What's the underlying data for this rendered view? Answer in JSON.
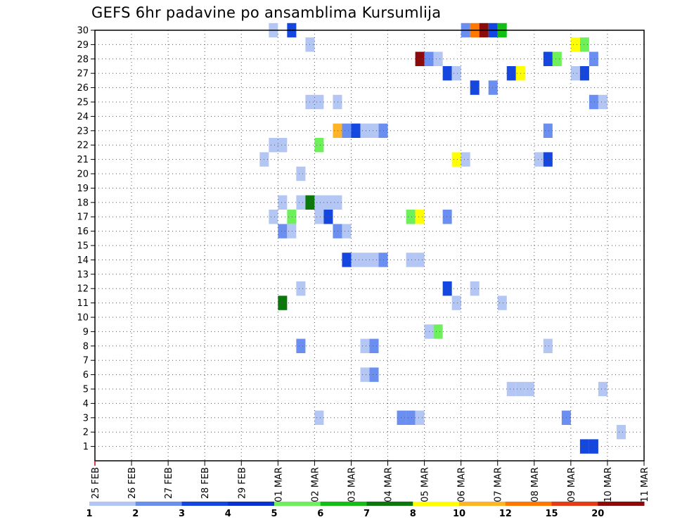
{
  "chart_data": {
    "type": "heatmap",
    "title": "GEFS 6hr padavine po ansamblima Kursumlija",
    "xlabel": "",
    "ylabel": "",
    "x_ticks": [
      "25 FEB",
      "26 FEB",
      "27 FEB",
      "28 FEB",
      "29 FEB",
      "01 MAR",
      "02 MAR",
      "03 MAR",
      "04 MAR",
      "05 MAR",
      "06 MAR",
      "07 MAR",
      "08 MAR",
      "09 MAR",
      "10 MAR",
      "11 MAR"
    ],
    "y_ticks": [
      "1",
      "2",
      "3",
      "4",
      "5",
      "6",
      "7",
      "8",
      "9",
      "10",
      "11",
      "12",
      "13",
      "14",
      "15",
      "16",
      "17",
      "18",
      "19",
      "20",
      "21",
      "22",
      "23",
      "24",
      "25",
      "26",
      "27",
      "28",
      "29",
      "30"
    ],
    "xlim": [
      0,
      60
    ],
    "ylim": [
      0,
      30
    ],
    "x_unit": "6-hour steps from 25 FEB 00Z",
    "grid": true,
    "legend": {
      "placement": "bottom",
      "labels": [
        "1",
        "2",
        "3",
        "4",
        "5",
        "6",
        "7",
        "8",
        "10",
        "12",
        "15",
        "20"
      ],
      "colors": [
        "#b4c6f4",
        "#6b8ff0",
        "#1446e0",
        "#0a32d2",
        "#6ef05a",
        "#14be14",
        "#0a780a",
        "#ffff00",
        "#ffb428",
        "#ff7800",
        "#e63c14",
        "#8c0a0a"
      ]
    },
    "points": [
      {
        "t": 19.5,
        "m": 30,
        "c": 1
      },
      {
        "t": 21.5,
        "m": 30,
        "c": 3
      },
      {
        "t": 40.5,
        "m": 30,
        "c": 2
      },
      {
        "t": 41.5,
        "m": 30,
        "c": 10
      },
      {
        "t": 42.5,
        "m": 30,
        "c": 12
      },
      {
        "t": 43.5,
        "m": 30,
        "c": 3
      },
      {
        "t": 44.5,
        "m": 30,
        "c": 6
      },
      {
        "t": 23.5,
        "m": 29,
        "c": 1
      },
      {
        "t": 52.5,
        "m": 29,
        "c": 8
      },
      {
        "t": 53.5,
        "m": 29,
        "c": 5
      },
      {
        "t": 35.5,
        "m": 28,
        "c": 12
      },
      {
        "t": 36.5,
        "m": 28,
        "c": 2
      },
      {
        "t": 37.5,
        "m": 28,
        "c": 1
      },
      {
        "t": 49.5,
        "m": 28,
        "c": 3
      },
      {
        "t": 50.5,
        "m": 28,
        "c": 5
      },
      {
        "t": 54.5,
        "m": 28,
        "c": 2
      },
      {
        "t": 38.5,
        "m": 27,
        "c": 3
      },
      {
        "t": 39.5,
        "m": 27,
        "c": 1
      },
      {
        "t": 45.5,
        "m": 27,
        "c": 3
      },
      {
        "t": 46.5,
        "m": 27,
        "c": 8
      },
      {
        "t": 52.5,
        "m": 27,
        "c": 1
      },
      {
        "t": 53.5,
        "m": 27,
        "c": 3
      },
      {
        "t": 41.5,
        "m": 26,
        "c": 3
      },
      {
        "t": 43.5,
        "m": 26,
        "c": 2
      },
      {
        "t": 23.5,
        "m": 25,
        "c": 1
      },
      {
        "t": 24.5,
        "m": 25,
        "c": 1
      },
      {
        "t": 26.5,
        "m": 25,
        "c": 1
      },
      {
        "t": 54.5,
        "m": 25,
        "c": 2
      },
      {
        "t": 55.5,
        "m": 25,
        "c": 1
      },
      {
        "t": 26.5,
        "m": 23,
        "c": 9
      },
      {
        "t": 27.5,
        "m": 23,
        "c": 2
      },
      {
        "t": 28.5,
        "m": 23,
        "c": 3
      },
      {
        "t": 29.5,
        "m": 23,
        "c": 1
      },
      {
        "t": 30.5,
        "m": 23,
        "c": 1
      },
      {
        "t": 31.5,
        "m": 23,
        "c": 2
      },
      {
        "t": 49.5,
        "m": 23,
        "c": 2
      },
      {
        "t": 19.5,
        "m": 22,
        "c": 1
      },
      {
        "t": 20.5,
        "m": 22,
        "c": 1
      },
      {
        "t": 24.5,
        "m": 22,
        "c": 5
      },
      {
        "t": 18.5,
        "m": 21,
        "c": 1
      },
      {
        "t": 39.5,
        "m": 21,
        "c": 8
      },
      {
        "t": 40.5,
        "m": 21,
        "c": 1
      },
      {
        "t": 48.5,
        "m": 21,
        "c": 1
      },
      {
        "t": 49.5,
        "m": 21,
        "c": 3
      },
      {
        "t": 22.5,
        "m": 20,
        "c": 1
      },
      {
        "t": 20.5,
        "m": 18,
        "c": 1
      },
      {
        "t": 22.5,
        "m": 18,
        "c": 1
      },
      {
        "t": 23.5,
        "m": 18,
        "c": 7
      },
      {
        "t": 24.5,
        "m": 18,
        "c": 1
      },
      {
        "t": 25.5,
        "m": 18,
        "c": 1
      },
      {
        "t": 26.5,
        "m": 18,
        "c": 1
      },
      {
        "t": 19.5,
        "m": 17,
        "c": 1
      },
      {
        "t": 21.5,
        "m": 17,
        "c": 5
      },
      {
        "t": 24.5,
        "m": 17,
        "c": 1
      },
      {
        "t": 25.5,
        "m": 17,
        "c": 3
      },
      {
        "t": 34.5,
        "m": 17,
        "c": 5
      },
      {
        "t": 35.5,
        "m": 17,
        "c": 8
      },
      {
        "t": 38.5,
        "m": 17,
        "c": 2
      },
      {
        "t": 20.5,
        "m": 16,
        "c": 2
      },
      {
        "t": 21.5,
        "m": 16,
        "c": 1
      },
      {
        "t": 26.5,
        "m": 16,
        "c": 2
      },
      {
        "t": 27.5,
        "m": 16,
        "c": 1
      },
      {
        "t": 27.5,
        "m": 14,
        "c": 3
      },
      {
        "t": 28.5,
        "m": 14,
        "c": 1
      },
      {
        "t": 29.5,
        "m": 14,
        "c": 1
      },
      {
        "t": 30.5,
        "m": 14,
        "c": 1
      },
      {
        "t": 31.5,
        "m": 14,
        "c": 2
      },
      {
        "t": 34.5,
        "m": 14,
        "c": 1
      },
      {
        "t": 35.5,
        "m": 14,
        "c": 1
      },
      {
        "t": 22.5,
        "m": 12,
        "c": 1
      },
      {
        "t": 38.5,
        "m": 12,
        "c": 3
      },
      {
        "t": 41.5,
        "m": 12,
        "c": 1
      },
      {
        "t": 20.5,
        "m": 11,
        "c": 7
      },
      {
        "t": 39.5,
        "m": 11,
        "c": 1
      },
      {
        "t": 44.5,
        "m": 11,
        "c": 1
      },
      {
        "t": 36.5,
        "m": 9,
        "c": 1
      },
      {
        "t": 37.5,
        "m": 9,
        "c": 5
      },
      {
        "t": 22.5,
        "m": 8,
        "c": 2
      },
      {
        "t": 29.5,
        "m": 8,
        "c": 1
      },
      {
        "t": 30.5,
        "m": 8,
        "c": 2
      },
      {
        "t": 49.5,
        "m": 8,
        "c": 1
      },
      {
        "t": 29.5,
        "m": 6,
        "c": 1
      },
      {
        "t": 30.5,
        "m": 6,
        "c": 2
      },
      {
        "t": 45.5,
        "m": 5,
        "c": 1
      },
      {
        "t": 46.5,
        "m": 5,
        "c": 1
      },
      {
        "t": 47.5,
        "m": 5,
        "c": 1
      },
      {
        "t": 55.5,
        "m": 5,
        "c": 1
      },
      {
        "t": 24.5,
        "m": 3,
        "c": 1
      },
      {
        "t": 33.5,
        "m": 3,
        "c": 2
      },
      {
        "t": 34.5,
        "m": 3,
        "c": 2
      },
      {
        "t": 35.5,
        "m": 3,
        "c": 1
      },
      {
        "t": 51.5,
        "m": 3,
        "c": 2
      },
      {
        "t": 57.5,
        "m": 2,
        "c": 1
      },
      {
        "t": 53.5,
        "m": 1,
        "c": 3
      },
      {
        "t": 54.5,
        "m": 1,
        "c": 3
      }
    ]
  }
}
